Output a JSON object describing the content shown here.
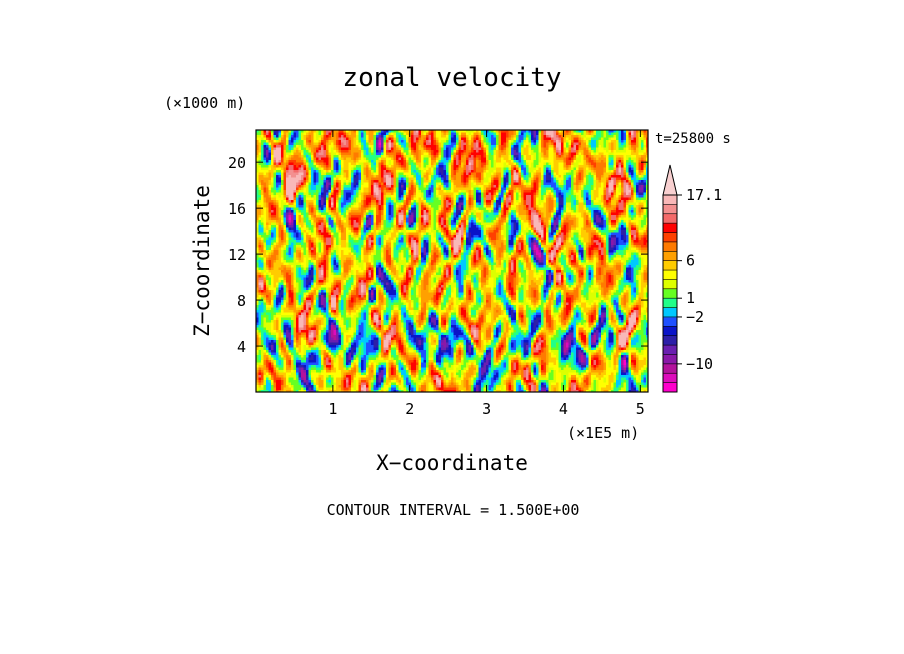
{
  "chart_data": {
    "type": "heatmap",
    "title": "zonal velocity",
    "xlabel": "X−coordinate",
    "ylabel": "Z−coordinate",
    "x_unit": "(×1E5 m)",
    "y_unit": "(×1000 m)",
    "time_label": "t=25800 s",
    "footer": "CONTOUR INTERVAL = 1.500E+00",
    "xlim": [
      0,
      5.1
    ],
    "ylim": [
      0,
      22.8
    ],
    "x_ticks": [
      1,
      2,
      3,
      4,
      5
    ],
    "x_tick_labels": [
      "1",
      "2",
      "3",
      "4",
      "5"
    ],
    "y_ticks": [
      4,
      8,
      12,
      16,
      20
    ],
    "y_tick_labels": [
      "4",
      "8",
      "12",
      "16",
      "20"
    ],
    "contour_interval": 1.5,
    "colorbar": {
      "levels": [
        -14.5,
        -13,
        -11.5,
        -10,
        -8.5,
        -7,
        -5.5,
        -4,
        -2.5,
        -1,
        0.5,
        2,
        3.5,
        5,
        6.5,
        8,
        9.5,
        11,
        12.5,
        14,
        15.5,
        17.1
      ],
      "colors": [
        "#ff00cc",
        "#dd0cbb",
        "#b3129c",
        "#8a18a8",
        "#6a1fb0",
        "#2d1fa8",
        "#0a14c8",
        "#1e50ff",
        "#00c8ff",
        "#22ff88",
        "#66ff22",
        "#ddff00",
        "#ffff00",
        "#ffcc00",
        "#ffa000",
        "#ff7a00",
        "#ff4000",
        "#ff0000",
        "#f36a6a",
        "#f39090",
        "#f8b8b8"
      ],
      "tick_values": [
        17.1,
        6,
        1,
        -2,
        -10
      ],
      "tick_labels": [
        "17.1",
        "6",
        "1",
        "−2",
        "−10"
      ]
    }
  }
}
